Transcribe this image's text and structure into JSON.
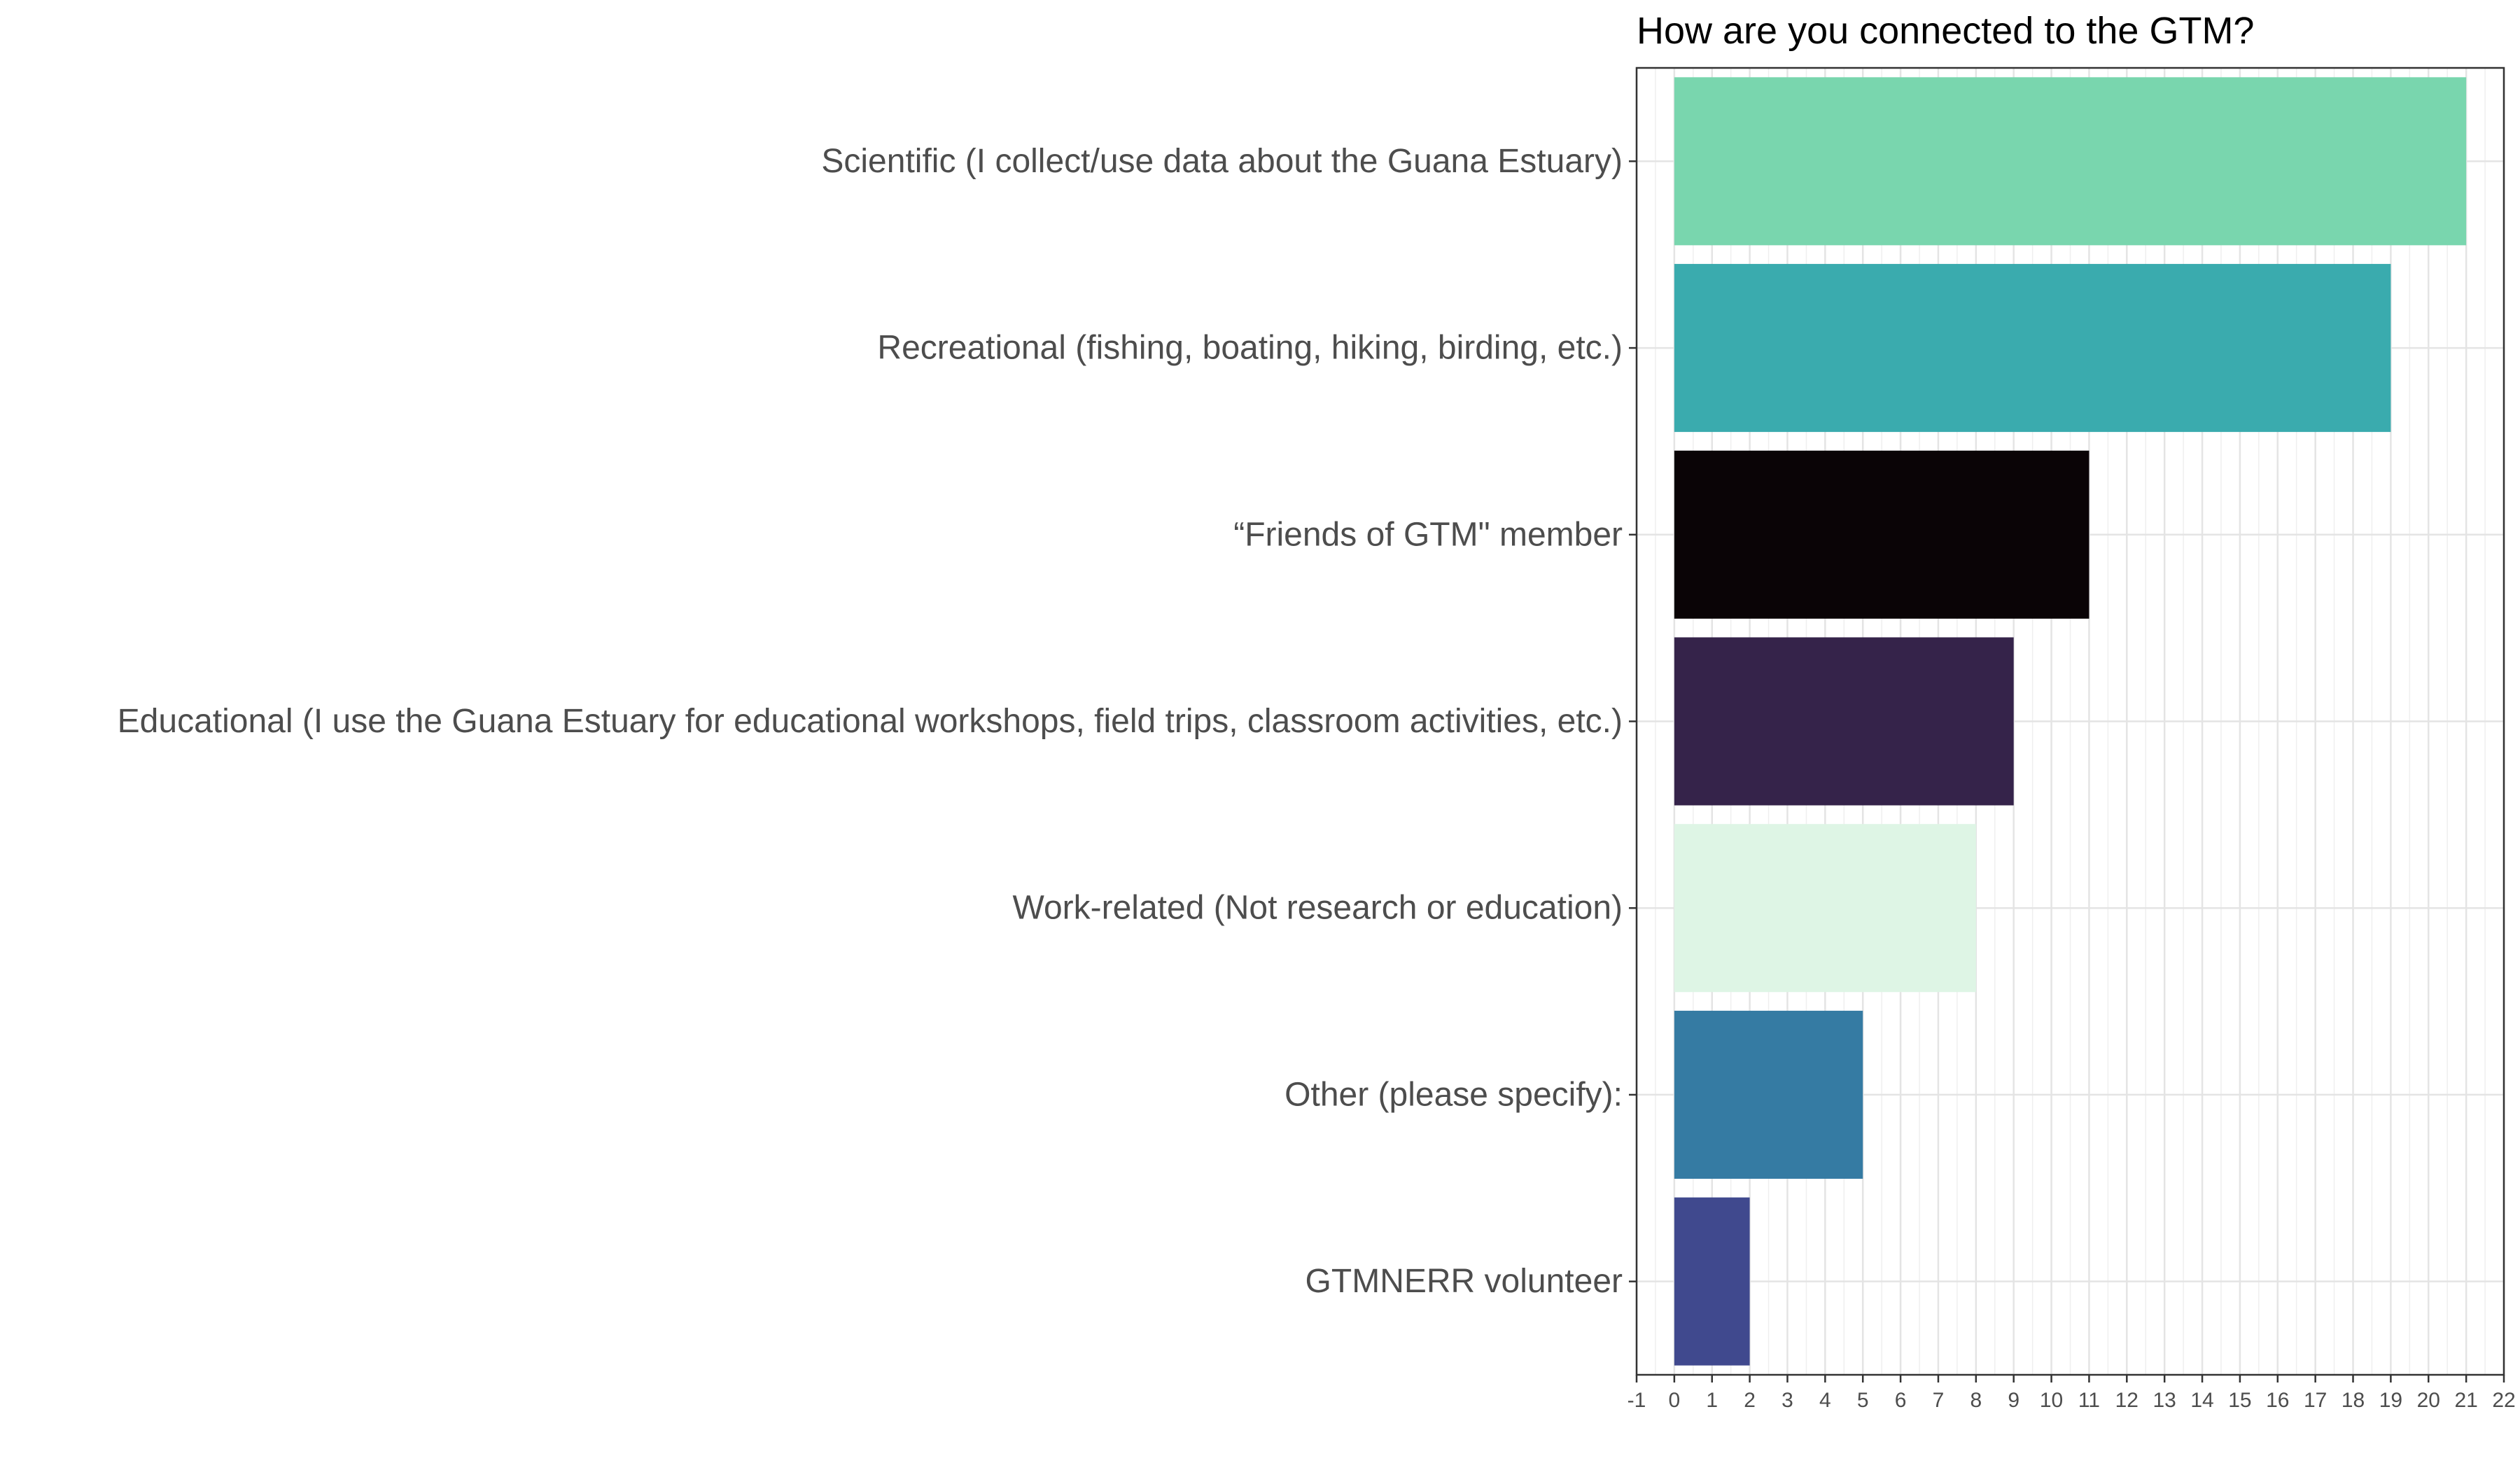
{
  "chart_data": {
    "type": "bar",
    "orientation": "horizontal",
    "title": "How are you connected to the GTM?",
    "xlabel": "",
    "ylabel": "",
    "xlim": [
      -1,
      22
    ],
    "grid": true,
    "legend": "none",
    "ticks": [
      -1,
      0,
      1,
      2,
      3,
      4,
      5,
      6,
      7,
      8,
      9,
      10,
      11,
      12,
      13,
      14,
      15,
      16,
      17,
      18,
      19,
      20,
      21,
      22
    ],
    "categories": [
      "Scientific (I collect/use data about the Guana Estuary)",
      "Recreational (fishing, boating, hiking, birding, etc.)",
      "“Friends of GTM\" member",
      "Educational (I use the Guana Estuary for educational workshops, field trips, classroom activities, etc.)",
      "Work-related (Not research or education)",
      "Other (please specify):",
      "GTMNERR volunteer"
    ],
    "values": [
      21,
      19,
      11,
      9,
      8,
      5,
      2
    ],
    "colors": [
      "#79d6ae",
      "#3aabae",
      "#0a0406",
      "#35234a",
      "#def5e5",
      "#357ba3",
      "#40498e"
    ]
  }
}
